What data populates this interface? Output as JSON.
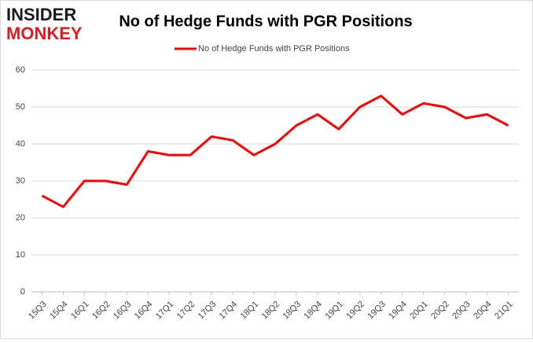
{
  "logo": {
    "line1": "INSIDER",
    "line2": "MONKEY"
  },
  "chart_data": {
    "type": "line",
    "title": "No of Hedge Funds with PGR Positions",
    "categories": [
      "15Q3",
      "15Q4",
      "16Q1",
      "16Q2",
      "16Q3",
      "16Q4",
      "17Q1",
      "17Q2",
      "17Q3",
      "17Q4",
      "18Q1",
      "18Q2",
      "18Q3",
      "18Q4",
      "19Q1",
      "19Q2",
      "19Q3",
      "19Q4",
      "20Q1",
      "20Q2",
      "20Q3",
      "20Q4",
      "21Q1"
    ],
    "series": [
      {
        "name": "No of Hedge Funds with PGR Positions",
        "color": "#ff0000",
        "values": [
          26,
          23,
          30,
          30,
          29,
          38,
          37,
          37,
          42,
          41,
          37,
          40,
          45,
          48,
          44,
          50,
          53,
          48,
          51,
          50,
          47,
          48,
          45
        ]
      }
    ],
    "ylim": [
      0,
      60
    ],
    "yticks": [
      0,
      10,
      20,
      30,
      40,
      50,
      60
    ],
    "grid": true,
    "legend": "top"
  }
}
